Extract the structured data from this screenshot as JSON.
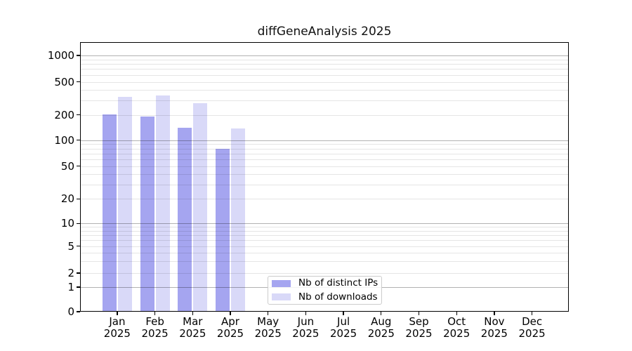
{
  "chart_data": {
    "type": "bar",
    "title": "diffGeneAnalysis 2025",
    "yscale": "symlog",
    "ylim": [
      0,
      1430
    ],
    "grid": true,
    "yticks": [
      0,
      1,
      2,
      5,
      10,
      20,
      50,
      100,
      200,
      500,
      1000
    ],
    "months": [
      "Jan",
      "Feb",
      "Mar",
      "Apr",
      "May",
      "Jun",
      "Jul",
      "Aug",
      "Sep",
      "Oct",
      "Nov",
      "Dec"
    ],
    "year_label": "2025",
    "series": [
      {
        "name": "Nb of distinct IPs",
        "color": "#a5a5f0",
        "values": [
          203,
          190,
          141,
          79,
          null,
          null,
          null,
          null,
          null,
          null,
          null,
          null
        ]
      },
      {
        "name": "Nb of downloads",
        "color": "#d9d9f8",
        "values": [
          330,
          345,
          276,
          138,
          null,
          null,
          null,
          null,
          null,
          null,
          null,
          null
        ]
      }
    ],
    "legend_position": "lower center-left"
  }
}
